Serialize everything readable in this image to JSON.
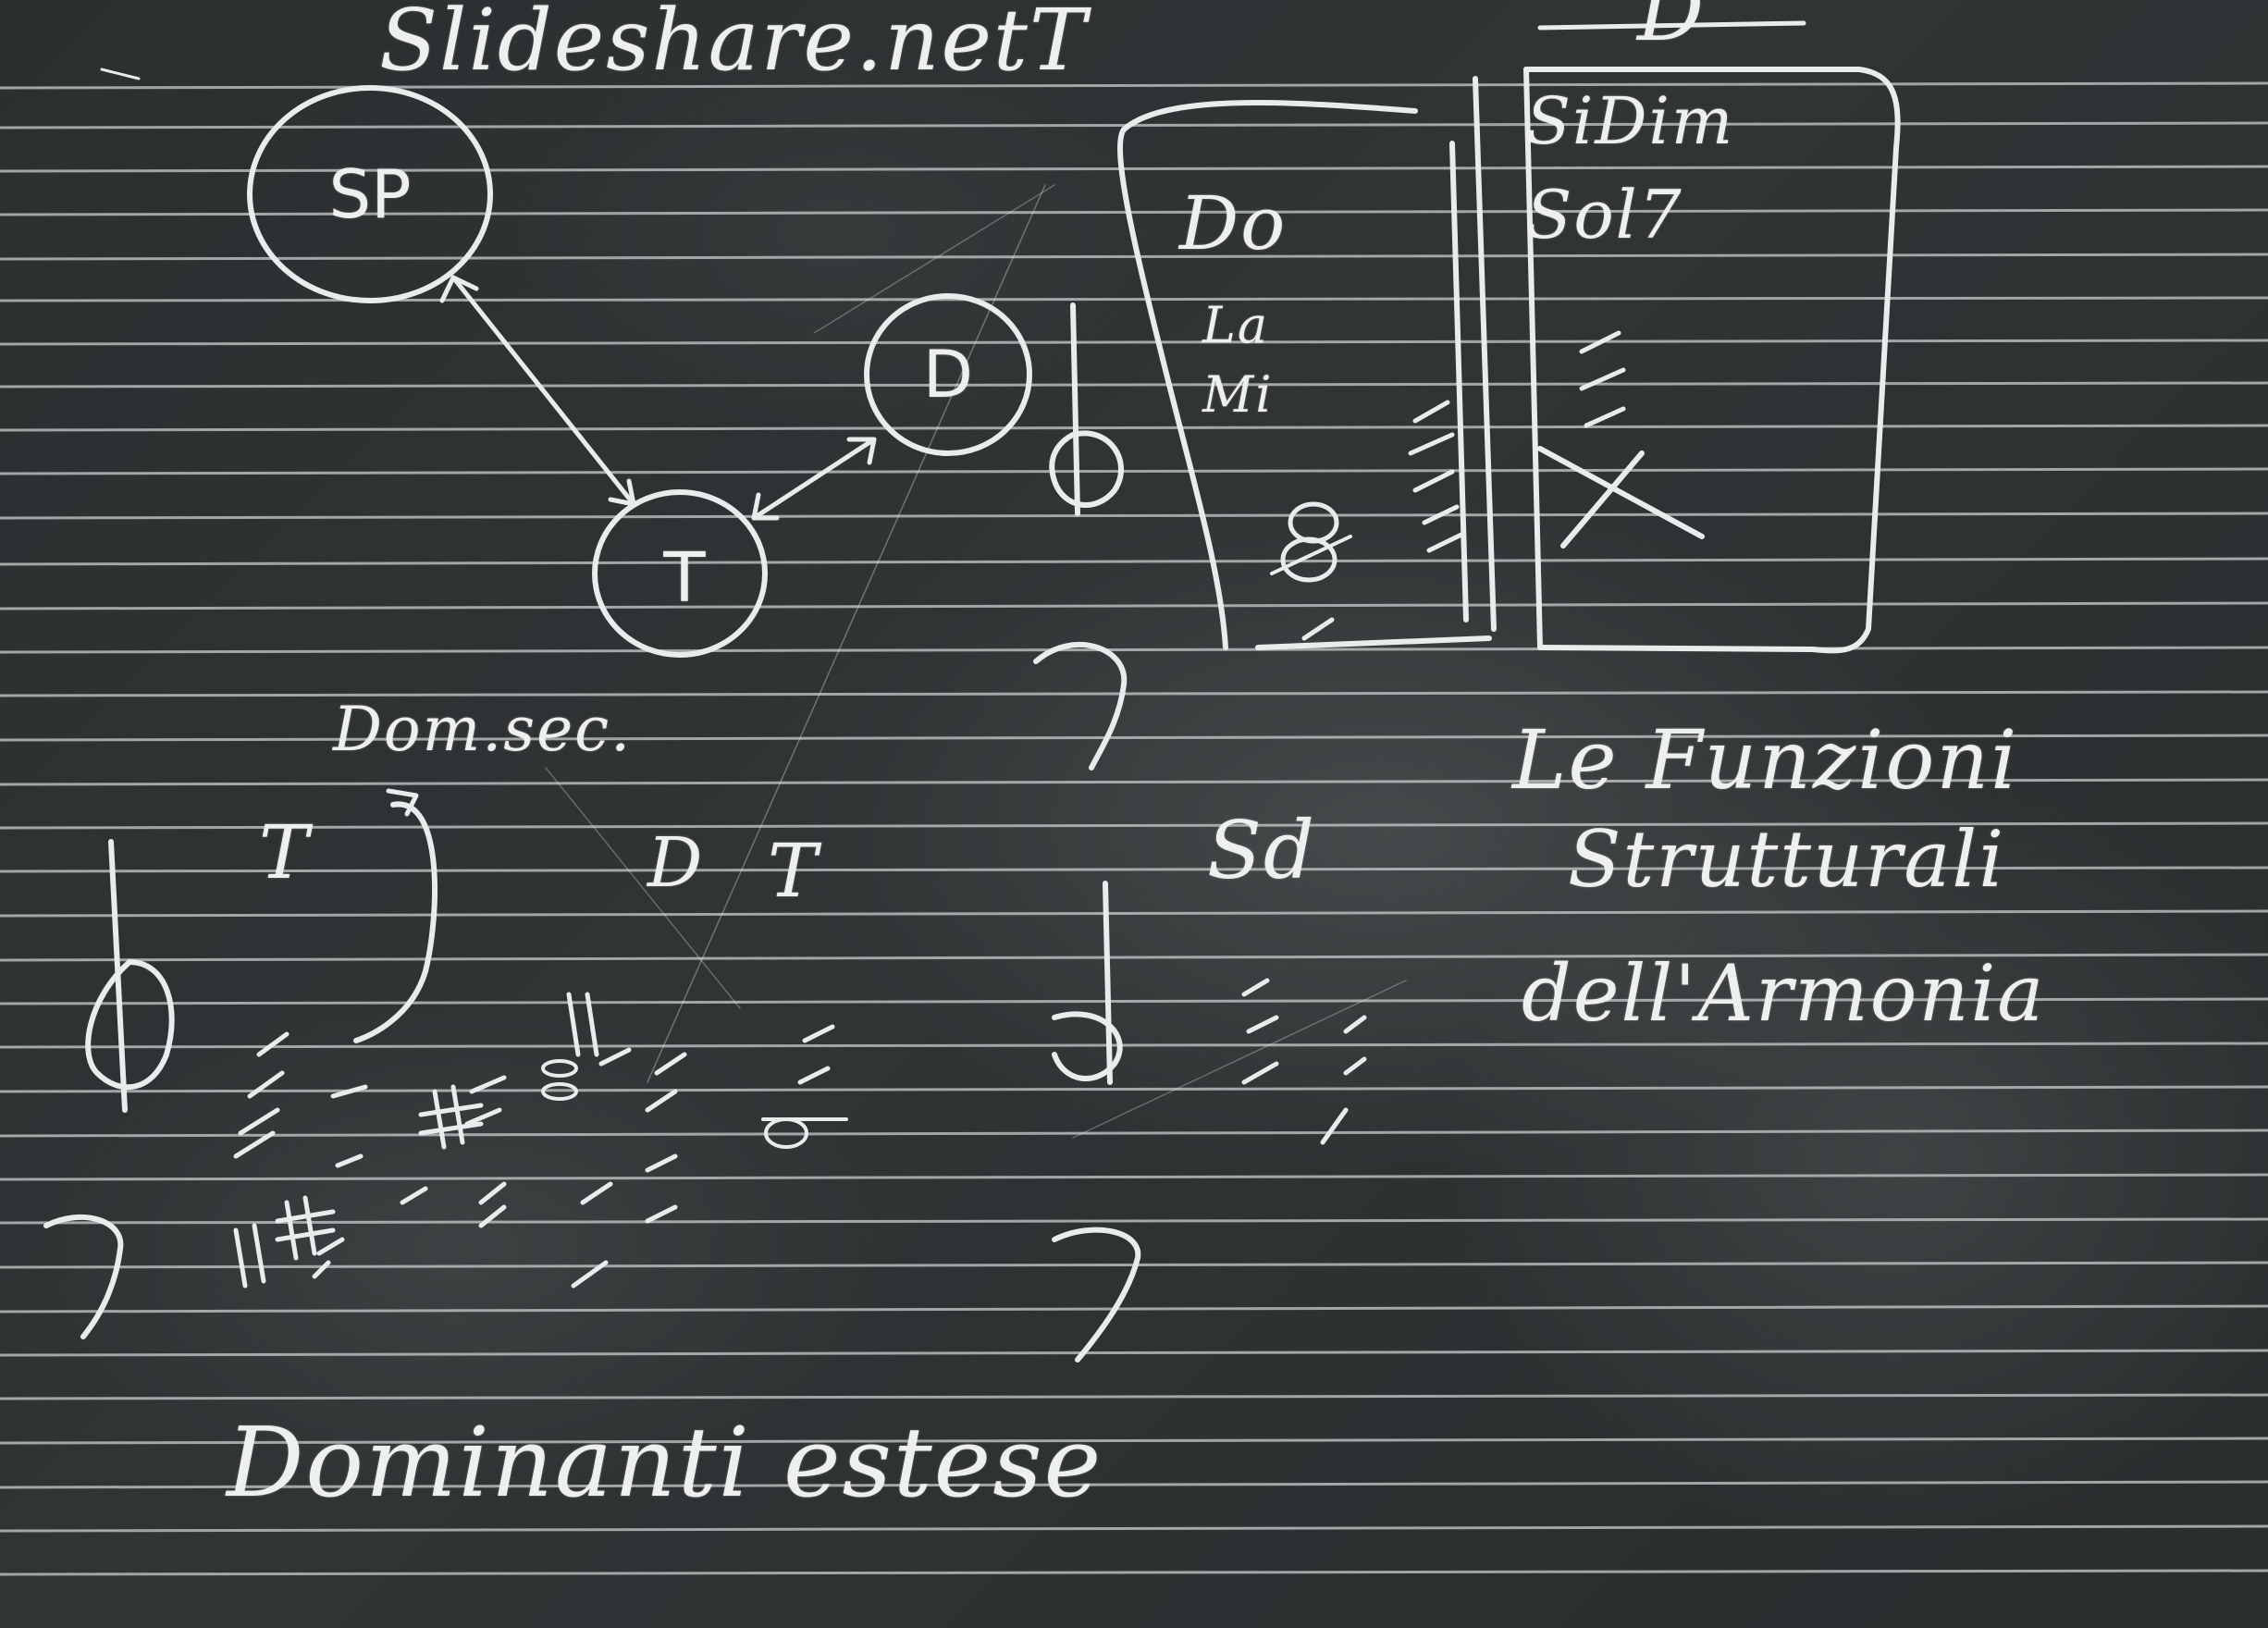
{
  "header": {
    "site": "Slideshare.netT",
    "top_right_d": "D"
  },
  "diagram": {
    "circles": [
      {
        "label": "SP"
      },
      {
        "label": "D"
      },
      {
        "label": "T"
      }
    ]
  },
  "box": {
    "left_items": [
      "Do",
      "La",
      "Mi"
    ],
    "right_items": [
      "SiDim",
      "Sol7"
    ]
  },
  "lower_left": {
    "dom_sec": "Dom.sec.",
    "t_label": "T",
    "d_label": "D",
    "t2_label": "T"
  },
  "middle": {
    "sd_label": "Sd"
  },
  "title": {
    "line1": "Le Funzioni",
    "line2": "Strutturali",
    "line3": "dell'Armonia"
  },
  "bottom": {
    "caption": "Dominanti estese"
  },
  "colors": {
    "board": "#2a2d2e",
    "chalk": "#e9ecec"
  }
}
